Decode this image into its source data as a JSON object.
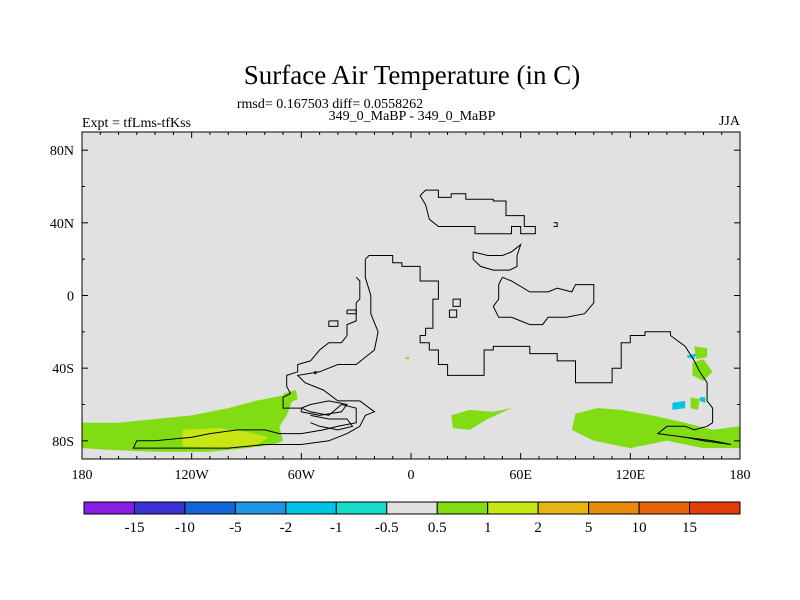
{
  "chart_data": {
    "type": "heatmap",
    "title": "Surface Air Temperature (in C)",
    "subtitle_stats": "rmsd= 0.167503 diff= 0.0558262",
    "subtitle_case": "349_0_MaBP - 349_0_MaBP",
    "left_label": "Expt = tfLms-tfKss",
    "right_label": "JJA",
    "x_ticks": [
      {
        "value": -180,
        "label": "180"
      },
      {
        "value": -120,
        "label": "120W"
      },
      {
        "value": -60,
        "label": "60W"
      },
      {
        "value": 0,
        "label": "0"
      },
      {
        "value": 60,
        "label": "60E"
      },
      {
        "value": 120,
        "label": "120E"
      },
      {
        "value": 180,
        "label": "180"
      }
    ],
    "y_ticks": [
      {
        "value": 80,
        "label": "80N"
      },
      {
        "value": 40,
        "label": "40N"
      },
      {
        "value": 0,
        "label": "0"
      },
      {
        "value": -40,
        "label": "40S"
      },
      {
        "value": -80,
        "label": "80S"
      }
    ],
    "xlim": [
      -180,
      180
    ],
    "ylim": [
      -90,
      90
    ],
    "colorbar": {
      "colors": [
        "#8a1ee6",
        "#3a32d2",
        "#1466d8",
        "#1e96e6",
        "#00c3e6",
        "#14dcc8",
        "#e1e1e1",
        "#82dc14",
        "#c8e614",
        "#e6b414",
        "#e68c0a",
        "#e6640a",
        "#e63c0a"
      ],
      "labels": [
        "-15",
        "-10",
        "-5",
        "-2",
        "-1",
        "-0.5",
        "0.5",
        "1",
        "2",
        "5",
        "10",
        "15"
      ]
    },
    "background_color": "#e1e1e1",
    "anomaly_regions": [
      {
        "level": "1",
        "color": "#82dc14",
        "points": [
          [
            -180,
            -70
          ],
          [
            -160,
            -70
          ],
          [
            -140,
            -68
          ],
          [
            -120,
            -66
          ],
          [
            -100,
            -62
          ],
          [
            -85,
            -58
          ],
          [
            -70,
            -55
          ],
          [
            -65,
            -58
          ],
          [
            -68,
            -66
          ],
          [
            -72,
            -72
          ],
          [
            -70,
            -80
          ],
          [
            -75,
            -82
          ],
          [
            -90,
            -84
          ],
          [
            -110,
            -86
          ],
          [
            -140,
            -86
          ],
          [
            -165,
            -85
          ],
          [
            -180,
            -84
          ]
        ]
      },
      {
        "level": "2",
        "color": "#c8e614",
        "points": [
          [
            -125,
            -74
          ],
          [
            -105,
            -73
          ],
          [
            -90,
            -75
          ],
          [
            -78,
            -78
          ],
          [
            -85,
            -83
          ],
          [
            -105,
            -84
          ],
          [
            -125,
            -83
          ]
        ]
      },
      {
        "level": "1",
        "color": "#82dc14",
        "points": [
          [
            -70,
            -54
          ],
          [
            -63,
            -52
          ],
          [
            -62,
            -57
          ],
          [
            -68,
            -60
          ]
        ]
      },
      {
        "level": "1",
        "color": "#82dc14",
        "points": [
          [
            22,
            -66
          ],
          [
            32,
            -63
          ],
          [
            45,
            -64
          ],
          [
            55,
            -62
          ],
          [
            42,
            -68
          ],
          [
            32,
            -74
          ],
          [
            23,
            -73
          ]
        ]
      },
      {
        "level": "1",
        "color": "#82dc14",
        "points": [
          [
            90,
            -65
          ],
          [
            102,
            -62
          ],
          [
            115,
            -63
          ],
          [
            132,
            -66
          ],
          [
            150,
            -70
          ],
          [
            165,
            -74
          ],
          [
            180,
            -72
          ],
          [
            180,
            -84
          ],
          [
            160,
            -84
          ],
          [
            140,
            -80
          ],
          [
            120,
            -84
          ],
          [
            100,
            -80
          ],
          [
            88,
            -74
          ]
        ]
      },
      {
        "level": "1",
        "color": "#82dc14",
        "points": [
          [
            155,
            -28
          ],
          [
            162,
            -29
          ],
          [
            162,
            -34
          ],
          [
            156,
            -35
          ]
        ]
      },
      {
        "level": "1",
        "color": "#82dc14",
        "points": [
          [
            154,
            -37
          ],
          [
            160,
            -35
          ],
          [
            165,
            -42
          ],
          [
            160,
            -47
          ],
          [
            154,
            -44
          ]
        ]
      },
      {
        "level": "1",
        "color": "#82dc14",
        "points": [
          [
            153,
            -56
          ],
          [
            158,
            -57
          ],
          [
            157,
            -63
          ],
          [
            153,
            -62
          ]
        ]
      },
      {
        "level": "1",
        "color": "#82dc14",
        "points": [
          [
            -3,
            -34
          ],
          [
            -1,
            -34
          ],
          [
            -1,
            -35
          ],
          [
            -3,
            -35
          ]
        ]
      },
      {
        "level": "-1",
        "color": "#00c3e6",
        "points": [
          [
            143,
            -59
          ],
          [
            150,
            -58
          ],
          [
            150,
            -62
          ],
          [
            143,
            -63
          ]
        ]
      },
      {
        "level": "-1",
        "color": "#00c3e6",
        "points": [
          [
            151,
            -33
          ],
          [
            156,
            -32
          ],
          [
            155,
            -35
          ],
          [
            151,
            -34
          ]
        ]
      },
      {
        "level": "-1",
        "color": "#00c3e6",
        "points": [
          [
            158,
            -56
          ],
          [
            161,
            -56
          ],
          [
            161,
            -59
          ],
          [
            158,
            -58
          ]
        ]
      }
    ],
    "coastlines": [
      [
        [
          5,
          55
        ],
        [
          8,
          58
        ],
        [
          15,
          58
        ],
        [
          15,
          54
        ],
        [
          22,
          54
        ],
        [
          22,
          56
        ],
        [
          30,
          56
        ],
        [
          30,
          53
        ],
        [
          45,
          53
        ],
        [
          45,
          52
        ],
        [
          52,
          52
        ],
        [
          52,
          44
        ],
        [
          62,
          44
        ],
        [
          62,
          38
        ],
        [
          68,
          38
        ],
        [
          68,
          34
        ],
        [
          60,
          34
        ],
        [
          60,
          38
        ],
        [
          55,
          38
        ],
        [
          55,
          34
        ],
        [
          35,
          34
        ],
        [
          35,
          38
        ],
        [
          22,
          38
        ],
        [
          15,
          38
        ],
        [
          10,
          42
        ],
        [
          8,
          50
        ],
        [
          5,
          55
        ]
      ],
      [
        [
          -25,
          20
        ],
        [
          -23,
          22
        ],
        [
          -10,
          22
        ],
        [
          -10,
          18
        ],
        [
          -5,
          18
        ],
        [
          -5,
          16
        ],
        [
          5,
          16
        ],
        [
          5,
          8
        ],
        [
          15,
          8
        ],
        [
          15,
          -2
        ],
        [
          12,
          -2
        ],
        [
          12,
          -18
        ],
        [
          8,
          -18
        ],
        [
          8,
          -22
        ],
        [
          5,
          -22
        ],
        [
          5,
          -26
        ],
        [
          10,
          -26
        ],
        [
          10,
          -30
        ],
        [
          15,
          -30
        ],
        [
          15,
          -38
        ],
        [
          20,
          -38
        ],
        [
          20,
          -44
        ],
        [
          40,
          -44
        ],
        [
          40,
          -30
        ],
        [
          45,
          -30
        ],
        [
          45,
          -28
        ],
        [
          65,
          -28
        ],
        [
          65,
          -32
        ],
        [
          80,
          -32
        ],
        [
          80,
          -36
        ],
        [
          90,
          -36
        ],
        [
          90,
          -48
        ],
        [
          110,
          -48
        ],
        [
          110,
          -40
        ],
        [
          115,
          -40
        ],
        [
          115,
          -26
        ],
        [
          120,
          -26
        ],
        [
          120,
          -22
        ],
        [
          128,
          -22
        ],
        [
          128,
          -20
        ],
        [
          142,
          -20
        ],
        [
          142,
          -22
        ],
        [
          150,
          -28
        ],
        [
          155,
          -36
        ],
        [
          158,
          -42
        ],
        [
          162,
          -48
        ],
        [
          162,
          -58
        ],
        [
          165,
          -62
        ],
        [
          165,
          -70
        ],
        [
          162,
          -72
        ],
        [
          155,
          -74
        ],
        [
          150,
          -72
        ],
        [
          140,
          -72
        ],
        [
          135,
          -76
        ],
        [
          150,
          -78
        ],
        [
          165,
          -80
        ],
        [
          175,
          -82
        ],
        [
          160,
          -80
        ],
        [
          150,
          -78
        ]
      ],
      [
        [
          -30,
          10
        ],
        [
          -28,
          8
        ],
        [
          -28,
          -2
        ],
        [
          -30,
          -4
        ],
        [
          -30,
          -14
        ],
        [
          -35,
          -16
        ],
        [
          -35,
          -22
        ],
        [
          -38,
          -26
        ],
        [
          -45,
          -26
        ],
        [
          -50,
          -30
        ],
        [
          -55,
          -36
        ],
        [
          -62,
          -38
        ],
        [
          -62,
          -42
        ],
        [
          -68,
          -44
        ],
        [
          -68,
          -50
        ],
        [
          -66,
          -54
        ],
        [
          -70,
          -56
        ],
        [
          -70,
          -62
        ],
        [
          -60,
          -62
        ],
        [
          -55,
          -64
        ],
        [
          -45,
          -66
        ],
        [
          -38,
          -60
        ],
        [
          -30,
          -62
        ],
        [
          -30,
          -70
        ],
        [
          -40,
          -72
        ],
        [
          -48,
          -74
        ],
        [
          -60,
          -76
        ],
        [
          -72,
          -76
        ],
        [
          -80,
          -74
        ],
        [
          -95,
          -74
        ],
        [
          -110,
          -76
        ],
        [
          -120,
          -78
        ],
        [
          -140,
          -80
        ],
        [
          -150,
          -80
        ],
        [
          -152,
          -84
        ],
        [
          -120,
          -84
        ],
        [
          -100,
          -84
        ],
        [
          -80,
          -82
        ],
        [
          -60,
          -82
        ],
        [
          -45,
          -80
        ],
        [
          -35,
          -76
        ],
        [
          -28,
          -72
        ],
        [
          -25,
          -66
        ],
        [
          -20,
          -64
        ],
        [
          -28,
          -58
        ],
        [
          -40,
          -58
        ],
        [
          -48,
          -52
        ],
        [
          -58,
          -48
        ],
        [
          -62,
          -44
        ],
        [
          -50,
          -42
        ],
        [
          -40,
          -38
        ],
        [
          -30,
          -38
        ],
        [
          -20,
          -30
        ],
        [
          -18,
          -20
        ],
        [
          -22,
          -10
        ],
        [
          -22,
          0
        ],
        [
          -25,
          10
        ],
        [
          -25,
          20
        ]
      ],
      [
        [
          -45,
          -14
        ],
        [
          -40,
          -14
        ],
        [
          -40,
          -17
        ],
        [
          -45,
          -17
        ],
        [
          -45,
          -14
        ]
      ],
      [
        [
          -35,
          -8
        ],
        [
          -30,
          -8
        ],
        [
          -30,
          -10
        ],
        [
          -35,
          -10
        ],
        [
          -35,
          -8
        ]
      ],
      [
        [
          -60,
          -62
        ],
        [
          -55,
          -60
        ],
        [
          -45,
          -58
        ],
        [
          -35,
          -60
        ],
        [
          -38,
          -64
        ],
        [
          -50,
          -66
        ],
        [
          -60,
          -64
        ],
        [
          -60,
          -62
        ]
      ],
      [
        [
          -55,
          -66
        ],
        [
          -45,
          -68
        ],
        [
          -35,
          -68
        ],
        [
          -32,
          -72
        ],
        [
          -40,
          -74
        ],
        [
          -50,
          -72
        ],
        [
          -55,
          -70
        ]
      ],
      [
        [
          50,
          10
        ],
        [
          55,
          8
        ],
        [
          65,
          2
        ],
        [
          75,
          2
        ],
        [
          80,
          4
        ],
        [
          88,
          2
        ],
        [
          90,
          6
        ],
        [
          100,
          6
        ],
        [
          100,
          -4
        ],
        [
          95,
          -10
        ],
        [
          85,
          -12
        ],
        [
          75,
          -12
        ],
        [
          72,
          -16
        ],
        [
          65,
          -16
        ],
        [
          55,
          -12
        ],
        [
          48,
          -12
        ],
        [
          45,
          -6
        ],
        [
          48,
          -2
        ],
        [
          48,
          6
        ],
        [
          50,
          10
        ]
      ],
      [
        [
          34,
          24
        ],
        [
          42,
          22
        ],
        [
          50,
          22
        ],
        [
          55,
          24
        ],
        [
          60,
          28
        ],
        [
          58,
          22
        ],
        [
          58,
          16
        ],
        [
          54,
          14
        ],
        [
          45,
          14
        ],
        [
          38,
          16
        ],
        [
          34,
          20
        ],
        [
          34,
          24
        ]
      ],
      [
        [
          23,
          -2
        ],
        [
          27,
          -2
        ],
        [
          27,
          -6
        ],
        [
          23,
          -6
        ],
        [
          23,
          -2
        ]
      ],
      [
        [
          21,
          -8
        ],
        [
          25,
          -8
        ],
        [
          25,
          -12
        ],
        [
          21,
          -12
        ],
        [
          21,
          -8
        ]
      ],
      [
        [
          -53,
          -42
        ],
        [
          -52,
          -42
        ],
        [
          -52,
          -43
        ],
        [
          -53,
          -43
        ]
      ],
      [
        [
          78,
          40
        ],
        [
          80,
          40
        ],
        [
          80,
          38
        ],
        [
          78,
          38
        ]
      ]
    ]
  }
}
